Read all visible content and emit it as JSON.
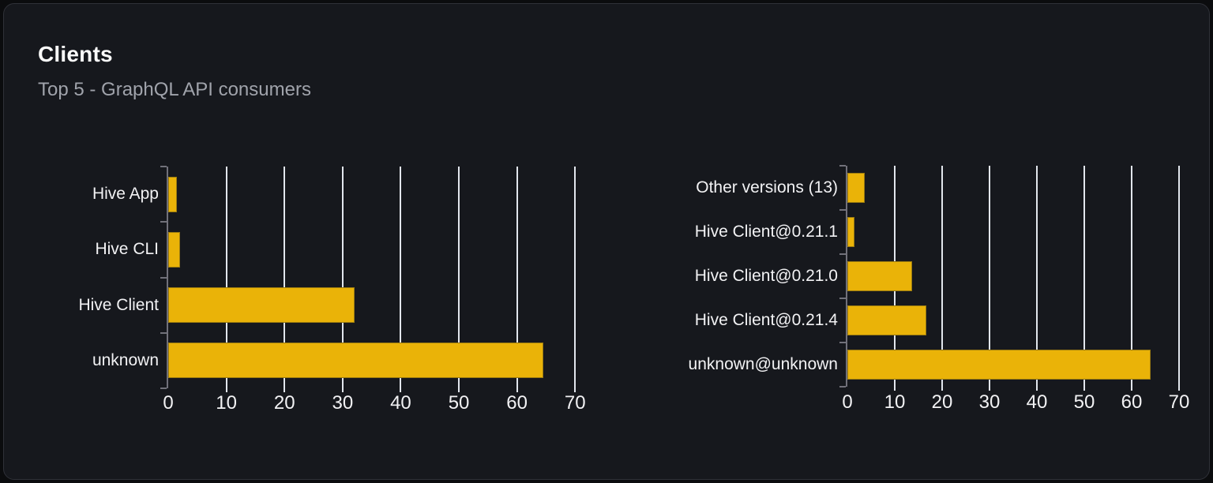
{
  "card": {
    "title": "Clients",
    "subtitle": "Top 5 - GraphQL API consumers"
  },
  "colors": {
    "page_background": "#0b0c0e",
    "card_background": "#16181d",
    "card_border": "#2f3138",
    "bar_fill": "#eab308",
    "bar_stroke": "#9a7a10",
    "gridline": "#e2e6ed",
    "axis": "#71717a",
    "title_text": "#fafafa",
    "subtitle_text": "#a0a3ab",
    "label_text": "#f2f2f4"
  },
  "chart_data": [
    {
      "type": "bar",
      "orientation": "horizontal",
      "title": "",
      "categories": [
        "Hive App",
        "Hive CLI",
        "Hive Client",
        "unknown"
      ],
      "values": [
        1.5,
        2,
        32,
        64.5
      ],
      "xlabel": "",
      "ylabel": "",
      "xticks": [
        0,
        10,
        20,
        30,
        40,
        50,
        60,
        70
      ],
      "xlim": [
        0,
        72
      ],
      "grid": true,
      "legend": false
    },
    {
      "type": "bar",
      "orientation": "horizontal",
      "title": "",
      "categories": [
        "Other versions (13)",
        "Hive Client@0.21.1",
        "Hive Client@0.21.0",
        "Hive Client@0.21.4",
        "unknown@unknown"
      ],
      "values": [
        3.7,
        1.5,
        13.7,
        16.7,
        64
      ],
      "xlabel": "",
      "ylabel": "",
      "xticks": [
        0,
        10,
        20,
        30,
        40,
        50,
        60,
        70
      ],
      "xlim": [
        0,
        72
      ],
      "grid": true,
      "legend": false
    }
  ]
}
